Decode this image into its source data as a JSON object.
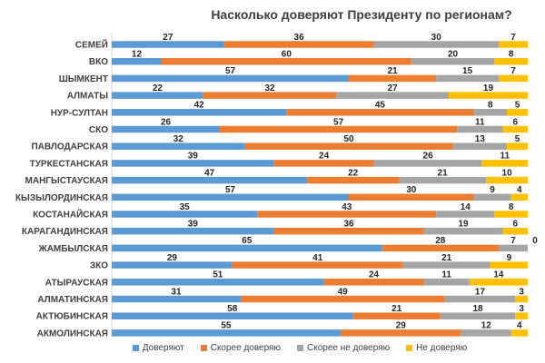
{
  "chart_data": {
    "type": "bar",
    "orientation": "horizontal",
    "stacked": true,
    "title": "Насколько доверяют Президенту по регионам?",
    "categories": [
      "СЕМЕЙ",
      "ВКО",
      "ШЫМКЕНТ",
      "АЛМАТЫ",
      "НУР-СУЛТАН",
      "СКО",
      "ПАВЛОДАРСКАЯ",
      "ТУРКЕСТАНСКАЯ",
      "МАНГЫСТАУСКАЯ",
      "КЫЗЫЛОРДИНСКАЯ",
      "КОСТАНАЙСКАЯ",
      "КАРАГАНДИНСКАЯ",
      "ЖАМБЫЛСКАЯ",
      "ЗКО",
      "АТЫРАУСКАЯ",
      "АЛМАТИНСКАЯ",
      "АКТЮБИНСКАЯ",
      "АКМОЛИНСКАЯ"
    ],
    "series": [
      {
        "name": "Доверяют",
        "color": "#5B9BD5",
        "values": [
          27,
          12,
          57,
          22,
          42,
          26,
          32,
          39,
          47,
          57,
          35,
          39,
          65,
          29,
          51,
          31,
          58,
          55
        ]
      },
      {
        "name": "Скорее доверяю",
        "color": "#ED7D31",
        "values": [
          36,
          60,
          21,
          32,
          45,
          57,
          50,
          24,
          22,
          30,
          43,
          36,
          28,
          41,
          24,
          49,
          21,
          29
        ]
      },
      {
        "name": "Скорее не доверяю",
        "color": "#A5A5A5",
        "values": [
          30,
          20,
          15,
          27,
          8,
          11,
          13,
          26,
          21,
          9,
          14,
          19,
          7,
          21,
          11,
          17,
          18,
          12
        ]
      },
      {
        "name": "Не доверяю",
        "color": "#FFC000",
        "values": [
          7,
          8,
          7,
          19,
          5,
          6,
          5,
          11,
          10,
          4,
          8,
          6,
          0,
          9,
          14,
          3,
          3,
          4
        ]
      }
    ],
    "legend_position": "bottom",
    "grid": false
  }
}
